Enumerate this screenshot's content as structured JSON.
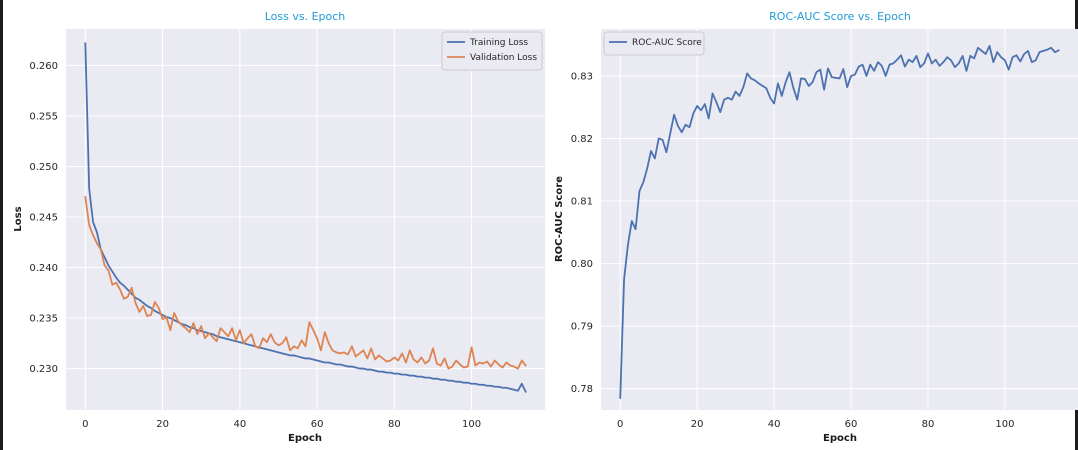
{
  "chart_data": [
    {
      "type": "line",
      "title": "Loss vs. Epoch",
      "xlabel": "Epoch",
      "ylabel": "Loss",
      "xlim": [
        -5,
        119
      ],
      "ylim": [
        0.2259,
        0.2636
      ],
      "xticks": [
        0,
        20,
        40,
        60,
        80,
        100
      ],
      "yticks": [
        0.23,
        0.235,
        0.24,
        0.245,
        0.25,
        0.255,
        0.26
      ],
      "ytick_decimals": 3,
      "grid": true,
      "legend": "top-right",
      "series": [
        {
          "name": "Training Loss",
          "color": "#4c72b0",
          "values": [
            0.2622,
            0.2478,
            0.2445,
            0.2435,
            0.2418,
            0.241,
            0.2402,
            0.2396,
            0.239,
            0.2385,
            0.2382,
            0.2378,
            0.2374,
            0.237,
            0.2368,
            0.2365,
            0.2362,
            0.236,
            0.2357,
            0.2355,
            0.2353,
            0.2351,
            0.235,
            0.2348,
            0.2346,
            0.2344,
            0.2343,
            0.2341,
            0.234,
            0.2338,
            0.2337,
            0.2336,
            0.2335,
            0.2334,
            0.2332,
            0.2331,
            0.233,
            0.2329,
            0.2328,
            0.2327,
            0.2326,
            0.2325,
            0.2324,
            0.2323,
            0.2322,
            0.2321,
            0.232,
            0.2319,
            0.2318,
            0.2317,
            0.2316,
            0.2315,
            0.2314,
            0.2313,
            0.2313,
            0.2312,
            0.2311,
            0.231,
            0.231,
            0.2309,
            0.2308,
            0.2307,
            0.2306,
            0.2306,
            0.2305,
            0.2304,
            0.2304,
            0.2303,
            0.2302,
            0.2302,
            0.2301,
            0.23,
            0.23,
            0.2299,
            0.2299,
            0.2298,
            0.2297,
            0.2297,
            0.2296,
            0.2296,
            0.2295,
            0.2295,
            0.2294,
            0.2294,
            0.2293,
            0.2293,
            0.2292,
            0.2292,
            0.2291,
            0.2291,
            0.229,
            0.229,
            0.2289,
            0.2289,
            0.2288,
            0.2288,
            0.2287,
            0.2287,
            0.2286,
            0.2286,
            0.2285,
            0.2285,
            0.2284,
            0.2284,
            0.2283,
            0.2283,
            0.2282,
            0.2282,
            0.2281,
            0.2281,
            0.228,
            0.2279,
            0.2278,
            0.2285,
            0.2277
          ]
        },
        {
          "name": "Validation Loss",
          "color": "#dd8452",
          "values": [
            0.247,
            0.2442,
            0.2432,
            0.2424,
            0.2418,
            0.2402,
            0.2397,
            0.2383,
            0.2385,
            0.2378,
            0.2369,
            0.2371,
            0.238,
            0.2365,
            0.2356,
            0.2362,
            0.2352,
            0.2353,
            0.2366,
            0.236,
            0.2349,
            0.2351,
            0.2338,
            0.2355,
            0.2347,
            0.2343,
            0.234,
            0.2336,
            0.2345,
            0.2334,
            0.2342,
            0.233,
            0.2335,
            0.2331,
            0.2327,
            0.234,
            0.2336,
            0.2332,
            0.234,
            0.2328,
            0.2338,
            0.2325,
            0.233,
            0.2334,
            0.2322,
            0.232,
            0.233,
            0.2326,
            0.2334,
            0.2326,
            0.2323,
            0.2325,
            0.2331,
            0.2318,
            0.2322,
            0.232,
            0.2328,
            0.2322,
            0.2346,
            0.2338,
            0.233,
            0.2318,
            0.2336,
            0.2325,
            0.2318,
            0.2316,
            0.2315,
            0.2316,
            0.2314,
            0.2322,
            0.2312,
            0.2315,
            0.2318,
            0.231,
            0.232,
            0.2309,
            0.2313,
            0.231,
            0.2307,
            0.2308,
            0.2311,
            0.2308,
            0.2315,
            0.2306,
            0.2318,
            0.2309,
            0.2306,
            0.2311,
            0.2305,
            0.2308,
            0.232,
            0.2305,
            0.2303,
            0.231,
            0.23,
            0.2302,
            0.2308,
            0.2304,
            0.2301,
            0.2302,
            0.2321,
            0.2303,
            0.2306,
            0.2305,
            0.2307,
            0.2302,
            0.2308,
            0.2304,
            0.2301,
            0.2306,
            0.2303,
            0.2302,
            0.23,
            0.2308,
            0.2303
          ]
        }
      ]
    },
    {
      "type": "line",
      "title": "ROC-AUC Score vs. Epoch",
      "xlabel": "Epoch",
      "ylabel": "ROC-AUC Score",
      "xlim": [
        -5,
        119
      ],
      "ylim": [
        0.7766,
        0.8375
      ],
      "xticks": [
        0,
        20,
        40,
        60,
        80,
        100
      ],
      "yticks": [
        0.78,
        0.79,
        0.8,
        0.81,
        0.82,
        0.83
      ],
      "ytick_decimals": 2,
      "grid": true,
      "legend": "top-left",
      "series": [
        {
          "name": "ROC-AUC Score",
          "color": "#4c72b0",
          "values": [
            0.7785,
            0.7975,
            0.803,
            0.8068,
            0.8055,
            0.8116,
            0.813,
            0.8152,
            0.818,
            0.8168,
            0.82,
            0.8198,
            0.8178,
            0.8208,
            0.8238,
            0.822,
            0.821,
            0.8222,
            0.8218,
            0.824,
            0.8252,
            0.8245,
            0.8255,
            0.8232,
            0.8272,
            0.8258,
            0.8242,
            0.8262,
            0.8265,
            0.8262,
            0.8275,
            0.8268,
            0.8282,
            0.8304,
            0.8296,
            0.8293,
            0.8288,
            0.8284,
            0.828,
            0.8265,
            0.8256,
            0.8288,
            0.8268,
            0.829,
            0.8306,
            0.8281,
            0.8262,
            0.8296,
            0.8295,
            0.8284,
            0.829,
            0.8306,
            0.831,
            0.8278,
            0.8312,
            0.8298,
            0.8297,
            0.8296,
            0.8311,
            0.8282,
            0.83,
            0.8302,
            0.8315,
            0.8318,
            0.83,
            0.8318,
            0.8308,
            0.8322,
            0.8316,
            0.83,
            0.8318,
            0.832,
            0.8326,
            0.8333,
            0.8315,
            0.8326,
            0.8322,
            0.8332,
            0.8314,
            0.832,
            0.8336,
            0.832,
            0.8326,
            0.8316,
            0.8322,
            0.833,
            0.8325,
            0.8314,
            0.832,
            0.8332,
            0.8308,
            0.8332,
            0.8328,
            0.8345,
            0.834,
            0.8335,
            0.8348,
            0.8322,
            0.8338,
            0.833,
            0.8325,
            0.831,
            0.833,
            0.8333,
            0.8323,
            0.8335,
            0.834,
            0.8322,
            0.8325,
            0.8338,
            0.834,
            0.8342,
            0.8345,
            0.8338,
            0.8341
          ]
        }
      ]
    }
  ]
}
